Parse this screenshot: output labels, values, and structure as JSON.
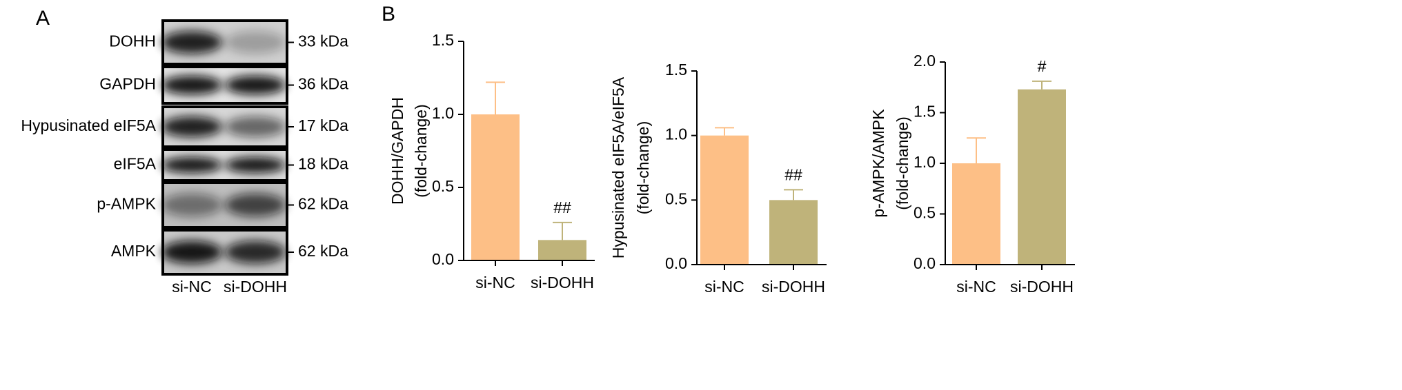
{
  "panel_a": {
    "label": "A",
    "rows": [
      {
        "name": "DOHH",
        "size": "33 kDa"
      },
      {
        "name": "GAPDH",
        "size": "36 kDa"
      },
      {
        "name": "Hypusinated eIF5A",
        "size": "17 kDa"
      },
      {
        "name": "eIF5A",
        "size": "18 kDa"
      },
      {
        "name": "p-AMPK",
        "size": "62 kDa"
      },
      {
        "name": "AMPK",
        "size": "62 kDa"
      }
    ],
    "lanes": [
      "si-NC",
      "si-DOHH"
    ]
  },
  "panel_b_label": "B",
  "chart_data": [
    {
      "type": "bar",
      "ylabel": [
        "DOHH/GAPDH",
        "(fold-change)"
      ],
      "categories": [
        "si-NC",
        "si-DOHH"
      ],
      "values": [
        1.0,
        0.14
      ],
      "errors": [
        0.22,
        0.12
      ],
      "colors": [
        "#fdbf86",
        "#bfb37a"
      ],
      "annotations": [
        {
          "index": 1,
          "text": "##"
        }
      ],
      "ylim": [
        0,
        1.5
      ],
      "yticks": [
        {
          "value": 0,
          "label": "0.0"
        },
        {
          "value": 0.5,
          "label": "0.5"
        },
        {
          "value": 1,
          "label": "1.0"
        },
        {
          "value": 1.5,
          "label": "1.5"
        }
      ]
    },
    {
      "type": "bar",
      "ylabel": [
        "Hypusinated eIF5A/eIF5A",
        "(fold-change)"
      ],
      "categories": [
        "si-NC",
        "si-DOHH"
      ],
      "values": [
        1.0,
        0.5
      ],
      "errors": [
        0.06,
        0.08
      ],
      "colors": [
        "#fdbf86",
        "#bfb37a"
      ],
      "annotations": [
        {
          "index": 1,
          "text": "##"
        }
      ],
      "ylim": [
        0,
        1.5
      ],
      "yticks": [
        {
          "value": 0,
          "label": "0.0"
        },
        {
          "value": 0.5,
          "label": "0.5"
        },
        {
          "value": 1,
          "label": "1.0"
        },
        {
          "value": 1.5,
          "label": "1.5"
        }
      ]
    },
    {
      "type": "bar",
      "ylabel": [
        "p-AMPK/AMPK",
        "(fold-change)"
      ],
      "categories": [
        "si-NC",
        "si-DOHH"
      ],
      "values": [
        1.0,
        1.73
      ],
      "errors": [
        0.25,
        0.08
      ],
      "colors": [
        "#fdbf86",
        "#bfb37a"
      ],
      "annotations": [
        {
          "index": 1,
          "text": "#"
        }
      ],
      "ylim": [
        0,
        2
      ],
      "yticks": [
        {
          "value": 0,
          "label": "0.0"
        },
        {
          "value": 0.5,
          "label": "0.5"
        },
        {
          "value": 1,
          "label": "1.0"
        },
        {
          "value": 1.5,
          "label": "1.5"
        },
        {
          "value": 2,
          "label": "2.0"
        }
      ]
    }
  ]
}
